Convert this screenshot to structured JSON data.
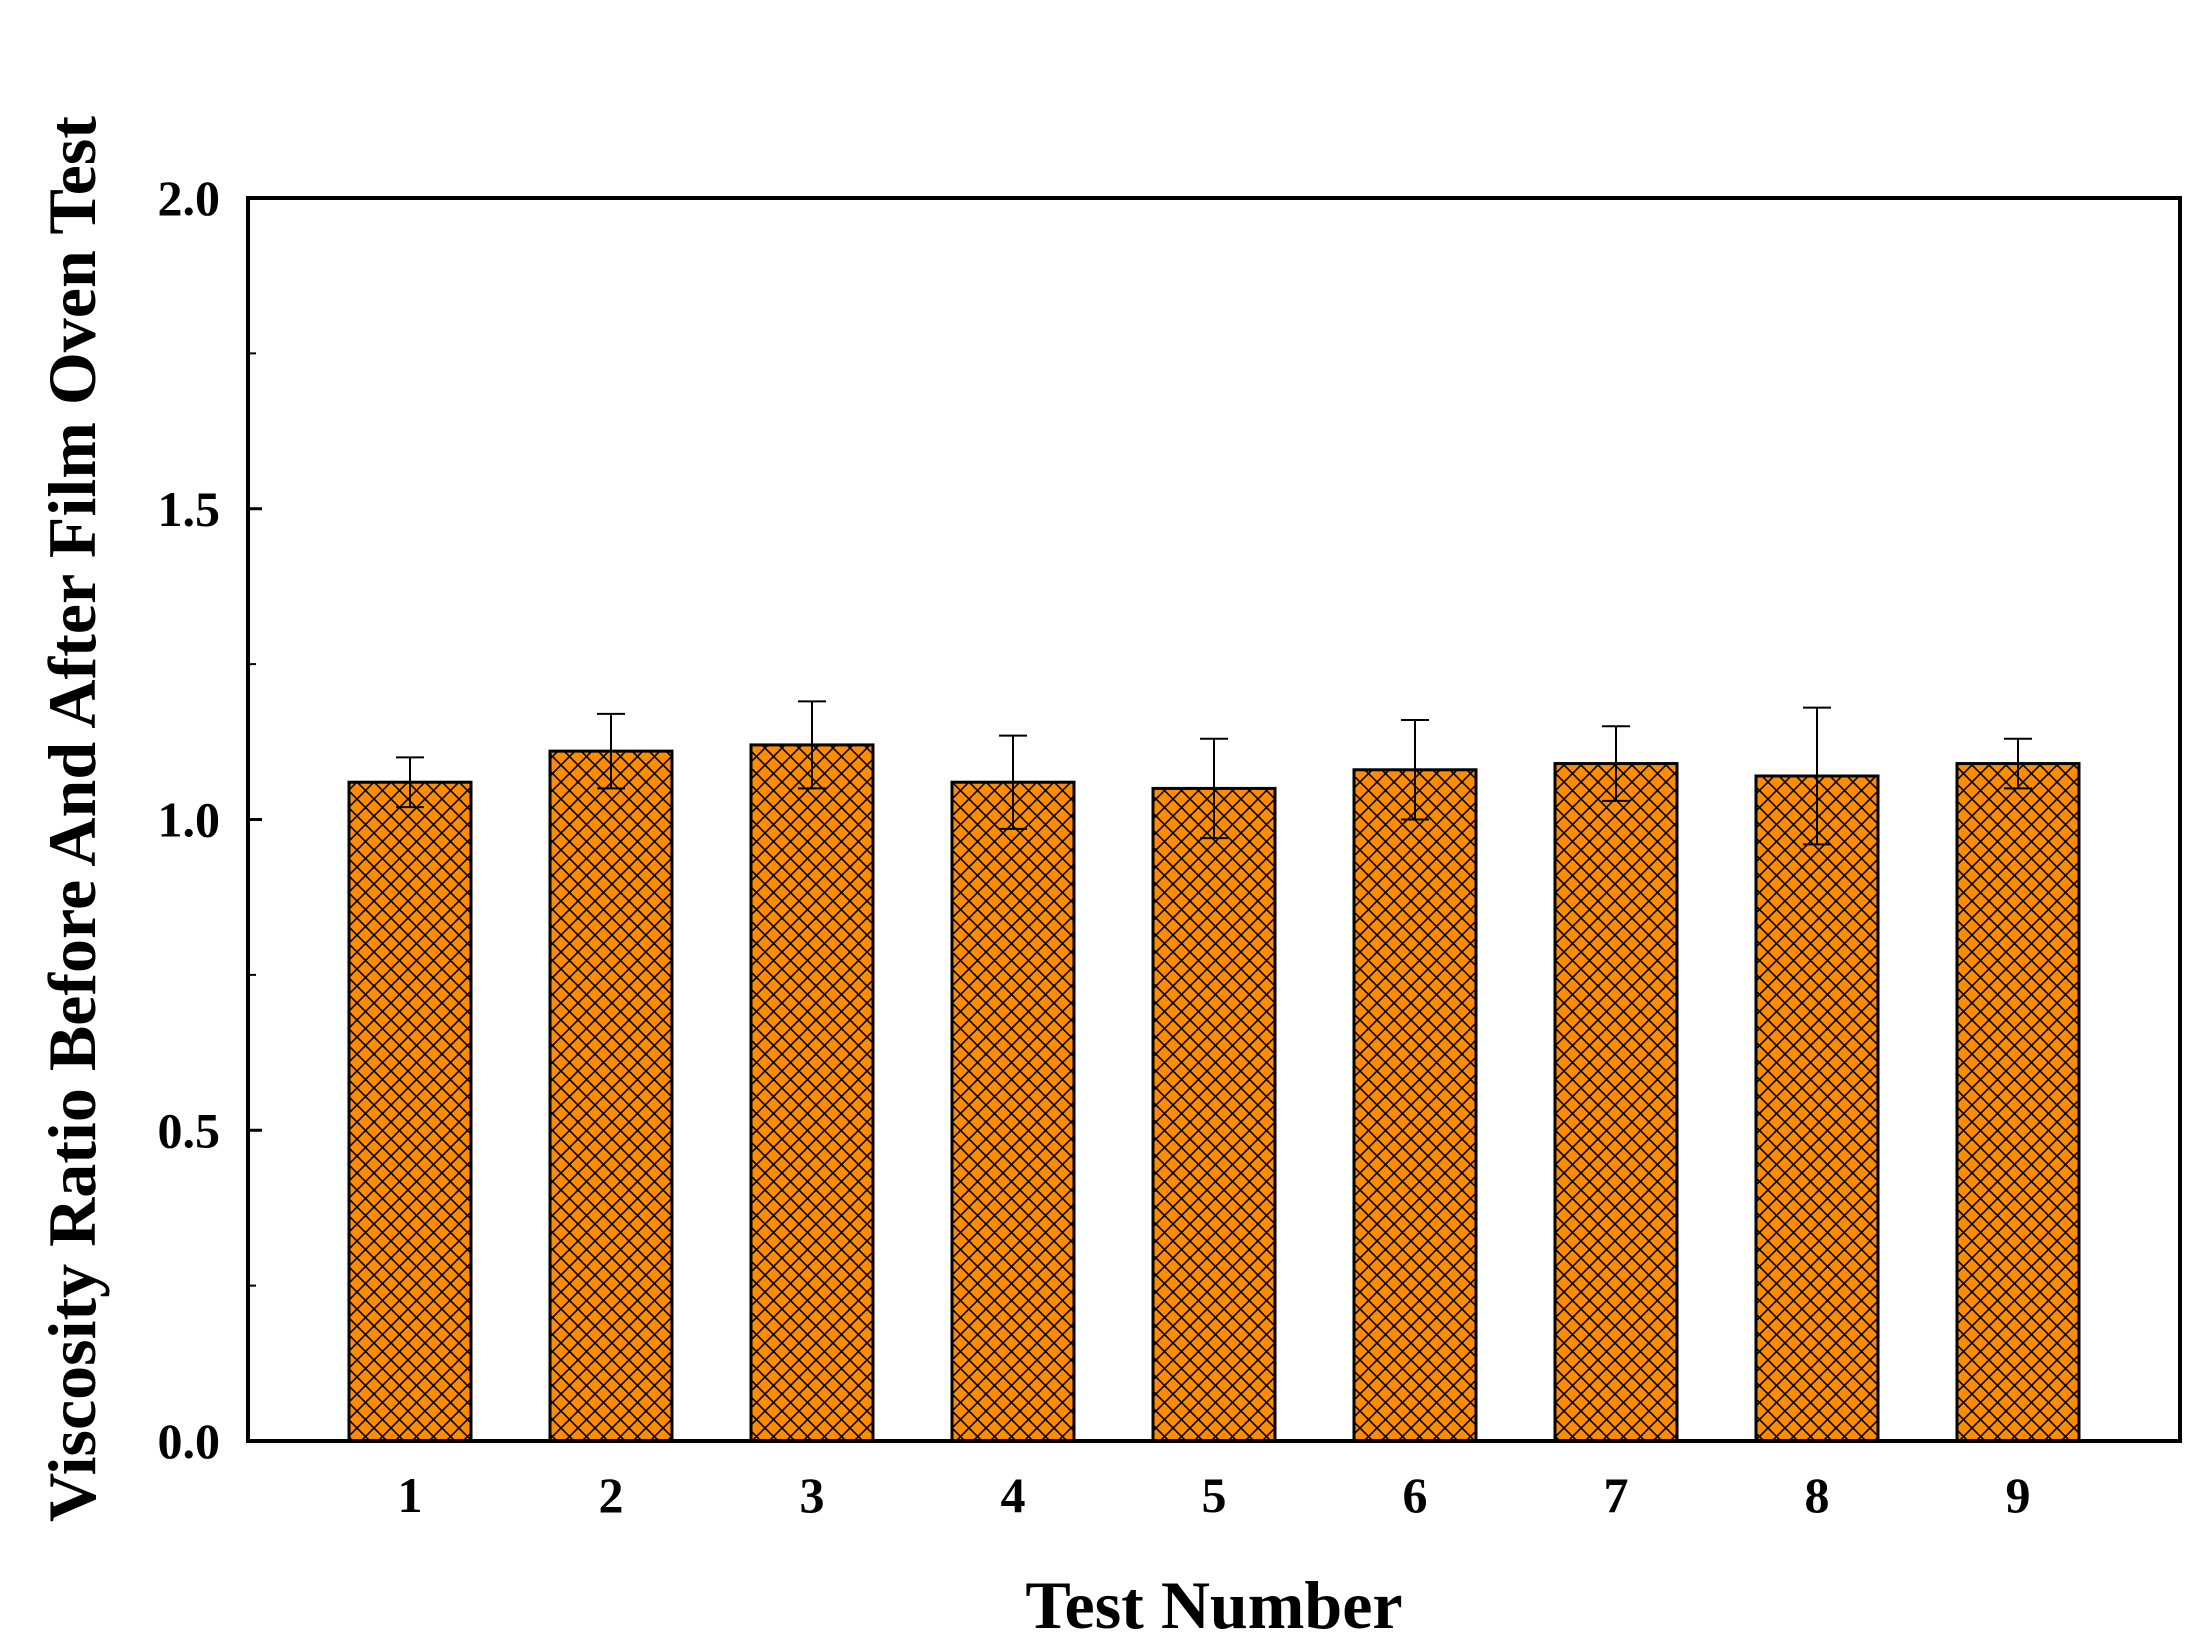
{
  "chart_data": {
    "type": "bar",
    "categories": [
      "1",
      "2",
      "3",
      "4",
      "5",
      "6",
      "7",
      "8",
      "9"
    ],
    "values": [
      1.06,
      1.11,
      1.12,
      1.06,
      1.05,
      1.08,
      1.09,
      1.07,
      1.09
    ],
    "errors": [
      0.04,
      0.06,
      0.07,
      0.075,
      0.08,
      0.08,
      0.06,
      0.11,
      0.04
    ],
    "xlabel": "Test Number",
    "ylabel": "Viscosity Ratio Before And After Film Oven Test",
    "ylim": [
      0,
      2.0
    ],
    "yticks": [
      "0.0",
      "0.5",
      "1.0",
      "1.5",
      "2.0"
    ],
    "ytick_values": [
      0,
      0.5,
      1.0,
      1.5,
      2.0
    ],
    "grid": false,
    "legend": "none",
    "bar_color": "#ff8c00",
    "bar_pattern": "crosshatch"
  }
}
